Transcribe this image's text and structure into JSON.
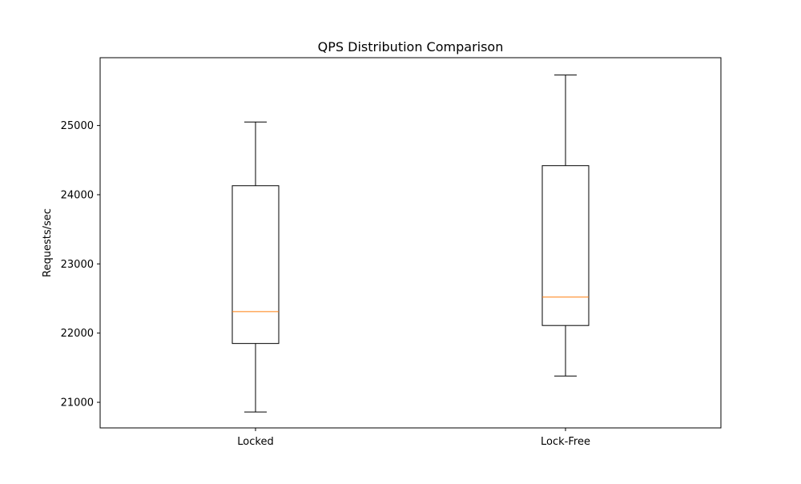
{
  "chart_data": {
    "type": "box",
    "title": "QPS Distribution Comparison",
    "xlabel": "",
    "ylabel": "Requests/sec",
    "categories": [
      "Locked",
      "Lock-Free"
    ],
    "boxes": [
      {
        "category": "Locked",
        "whisker_low": 20860,
        "q1": 21850,
        "median": 22310,
        "q3": 24130,
        "whisker_high": 25050
      },
      {
        "category": "Lock-Free",
        "whisker_low": 21380,
        "q1": 22110,
        "median": 22520,
        "q3": 24420,
        "whisker_high": 25730
      }
    ],
    "ylim": [
      20630,
      25980
    ],
    "yticks": [
      21000,
      22000,
      23000,
      24000,
      25000
    ],
    "grid": false,
    "legend": "none",
    "colors": {
      "box": "#000000",
      "median": "#ff7f0e",
      "background": "#ffffff"
    }
  }
}
